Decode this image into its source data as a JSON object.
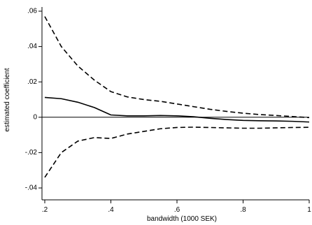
{
  "chart_data": {
    "type": "line",
    "xlabel": "bandwidth (1000 SEK)",
    "ylabel": "estimated coefficient",
    "xlim": [
      0.2,
      1.0
    ],
    "ylim": [
      -0.04,
      0.06
    ],
    "xticks": [
      0.2,
      0.4,
      0.6,
      0.8,
      1.0
    ],
    "xtick_labels": [
      ".2",
      ".4",
      ".6",
      ".8",
      "1"
    ],
    "yticks": [
      -0.04,
      -0.02,
      0,
      0.02,
      0.04,
      0.06
    ],
    "ytick_labels": [
      "-.04",
      "-.02",
      "0",
      ".02",
      ".04",
      ".06"
    ],
    "reference_line_y": 0,
    "grid": false,
    "legend": "none",
    "x": [
      0.2,
      0.25,
      0.3,
      0.35,
      0.4,
      0.45,
      0.5,
      0.55,
      0.6,
      0.65,
      0.7,
      0.75,
      0.8,
      0.85,
      0.9,
      0.95,
      1.0
    ],
    "series": [
      {
        "style": "solid",
        "color": "#000000",
        "values": [
          0.0112,
          0.0105,
          0.0085,
          0.0055,
          0.0013,
          0.0008,
          0.0008,
          0.001,
          0.0008,
          0.0003,
          -0.0006,
          -0.0013,
          -0.0018,
          -0.002,
          -0.0021,
          -0.0023,
          -0.0027
        ]
      },
      {
        "style": "dashed",
        "color": "#000000",
        "values": [
          0.057,
          0.04,
          0.029,
          0.021,
          0.0145,
          0.0115,
          0.01,
          0.009,
          0.0075,
          0.006,
          0.0045,
          0.0033,
          0.0023,
          0.0015,
          0.001,
          0.0004,
          -0.0002
        ]
      },
      {
        "style": "dashed",
        "color": "#000000",
        "values": [
          -0.034,
          -0.02,
          -0.0135,
          -0.0115,
          -0.012,
          -0.0095,
          -0.008,
          -0.0065,
          -0.0058,
          -0.0056,
          -0.0058,
          -0.006,
          -0.0062,
          -0.0062,
          -0.006,
          -0.0058,
          -0.0057
        ]
      }
    ]
  }
}
